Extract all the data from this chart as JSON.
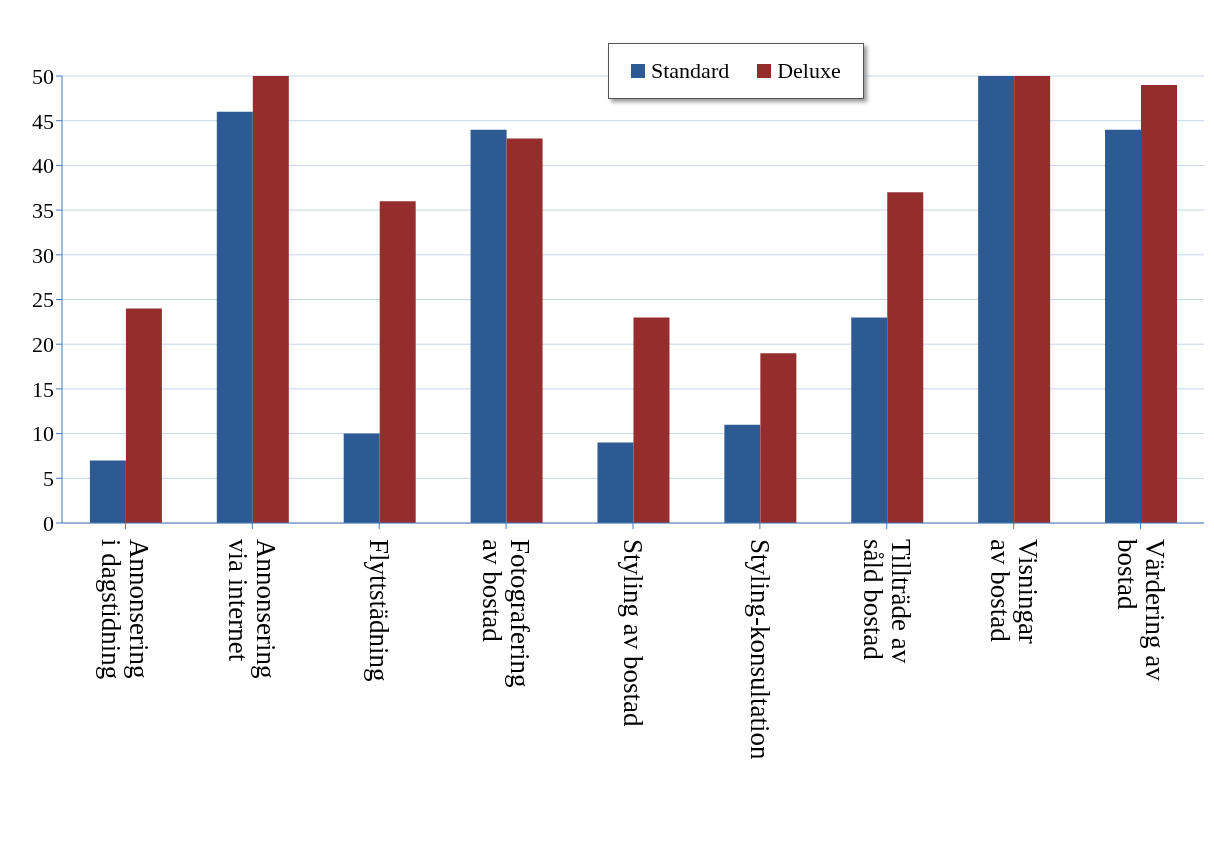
{
  "chart_data": {
    "type": "bar",
    "categories": [
      "Annonsering\ni dagstidning",
      "Annonsering\nvia internet",
      "Flyttstädning",
      "Fotografering\nav bostad",
      "Styling av bostad",
      "Styling-konsultation",
      "Tillträde av\nsåld bostad",
      "Visningar\nav bostad",
      "Värdering av\nbostad"
    ],
    "series": [
      {
        "name": "Standard",
        "color": "#2e5a94",
        "values": [
          7,
          46,
          10,
          44,
          9,
          11,
          23,
          50,
          44
        ]
      },
      {
        "name": "Deluxe",
        "color": "#962d2d",
        "values": [
          24,
          50,
          36,
          43,
          23,
          19,
          37,
          50,
          49
        ]
      }
    ],
    "ylim": [
      0,
      50
    ],
    "yticks": [
      0,
      5,
      10,
      15,
      20,
      25,
      30,
      35,
      40,
      45,
      50
    ],
    "grid": "y",
    "legend": "top"
  }
}
